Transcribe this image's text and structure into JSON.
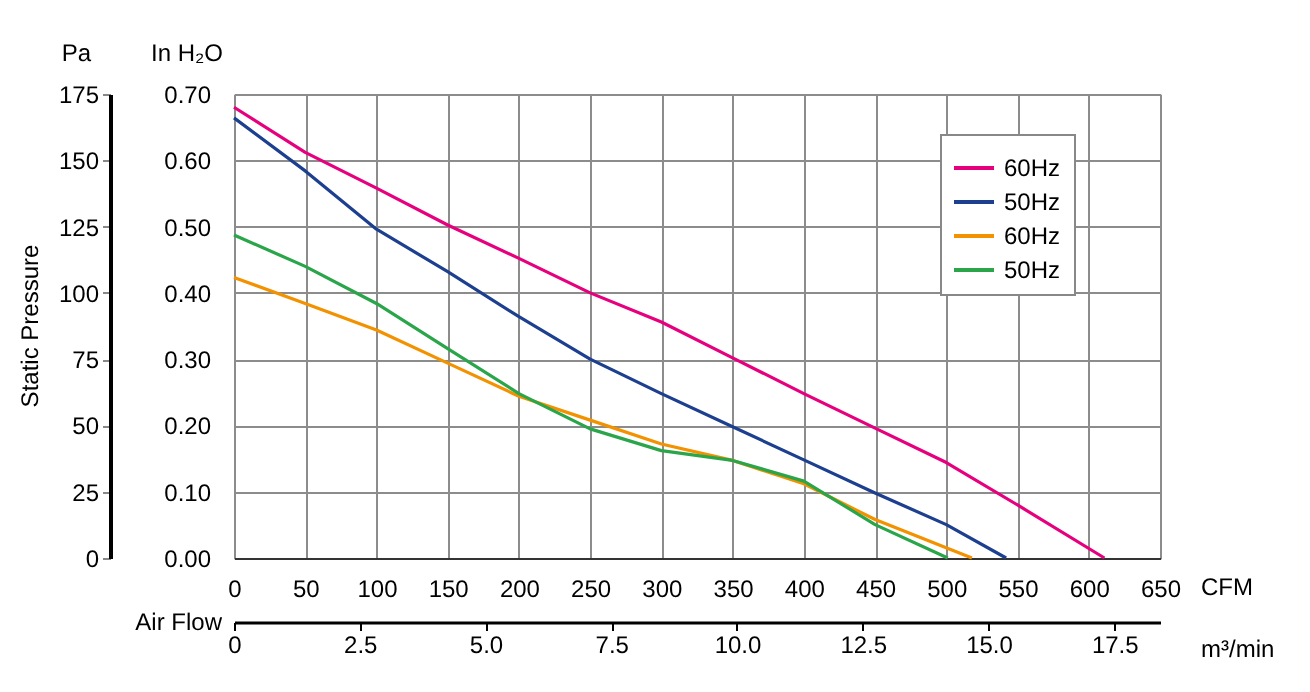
{
  "chart_data": {
    "type": "line",
    "ylabel": "Static Pressure",
    "xlabel": "CFM",
    "x2label": "m³/min",
    "y2label": "In H₂O",
    "annotations": [
      "Pa",
      "Air Flow"
    ],
    "xlim": [
      0,
      650
    ],
    "xticks": [
      0,
      50,
      100,
      150,
      200,
      250,
      300,
      350,
      400,
      450,
      500,
      550,
      600,
      650
    ],
    "ylim": [
      0,
      175
    ],
    "yticks": [
      0,
      25,
      50,
      75,
      100,
      125,
      150,
      175
    ],
    "y2lim": [
      0,
      0.7
    ],
    "y2ticks": [
      {
        "value": 0,
        "label": "0.00"
      },
      {
        "value": 0.1,
        "label": "0.10"
      },
      {
        "value": 0.2,
        "label": "0.20"
      },
      {
        "value": 0.3,
        "label": "0.30"
      },
      {
        "value": 0.4,
        "label": "0.40"
      },
      {
        "value": 0.5,
        "label": "0.50"
      },
      {
        "value": 0.6,
        "label": "0.60"
      },
      {
        "value": 0.7,
        "label": "0.70"
      }
    ],
    "x2lim": [
      0,
      18.41
    ],
    "x2ticks": [
      0,
      2.5,
      {
        "value": 5,
        "label": "5.0"
      },
      7.5,
      {
        "value": 10,
        "label": "10.0"
      },
      12.5,
      {
        "value": 15,
        "label": "15.0"
      },
      17.5
    ],
    "grid": true,
    "legend": "top right",
    "marker": "none",
    "line_style": "solid",
    "series": [
      {
        "name": "60Hz",
        "color": "#e6007e",
        "x": [
          0,
          50,
          100,
          150,
          200,
          250,
          300,
          350,
          400,
          450,
          500,
          550,
          611
        ],
        "values": [
          170,
          153,
          139.5,
          125.6,
          113,
          100,
          89,
          75.5,
          62,
          49,
          36,
          20,
          0
        ]
      },
      {
        "name": "50Hz",
        "color": "#1d3f8f",
        "x": [
          0,
          50,
          100,
          150,
          200,
          250,
          300,
          350,
          400,
          450,
          500,
          542
        ],
        "values": [
          166,
          146,
          124,
          108,
          91,
          75,
          62,
          49.5,
          37,
          24.5,
          12.6,
          0
        ]
      },
      {
        "name": "60Hz",
        "color": "#f39200",
        "x": [
          0,
          50,
          100,
          150,
          200,
          250,
          300,
          350,
          400,
          450,
          518
        ],
        "values": [
          105.8,
          96,
          86,
          73.5,
          61,
          52,
          43,
          36.8,
          28,
          14.5,
          0
        ]
      },
      {
        "name": "50Hz",
        "color": "#2aa54a",
        "x": [
          0,
          50,
          100,
          150,
          200,
          250,
          300,
          350,
          400,
          450,
          501
        ],
        "values": [
          121.8,
          110,
          96,
          79,
          62,
          48.7,
          40.5,
          36.8,
          29,
          12.6,
          0
        ]
      }
    ]
  }
}
